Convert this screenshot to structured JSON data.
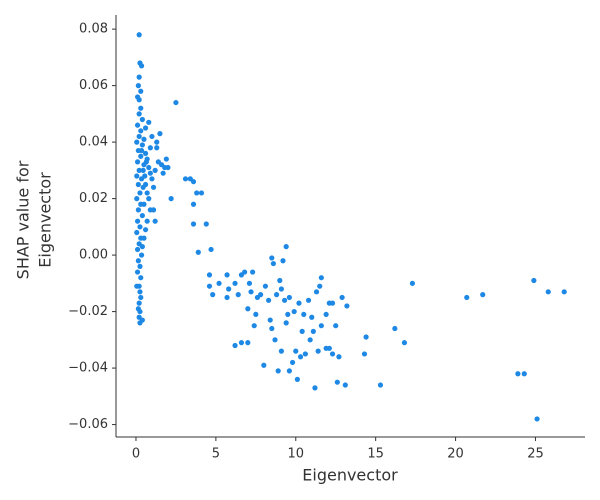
{
  "chart_data": {
    "type": "scatter",
    "x_label": "Eigenvector",
    "y_label": [
      "SHAP value for",
      "Eigenvector"
    ],
    "color": "#1e88e5",
    "x": [
      0.2,
      0.25,
      0.35,
      0.2,
      0.15,
      0.3,
      0.1,
      0.2,
      0.3,
      0.2,
      0.4,
      0.1,
      0.3,
      0.2,
      0.05,
      0.4,
      0.15,
      0.3,
      0.1,
      0.5,
      0.2,
      0.05,
      0.35,
      0.15,
      0.45,
      0.25,
      0.05,
      0.3,
      0.15,
      0.4,
      0.1,
      0.25,
      0.05,
      0.3,
      0.2,
      0.1,
      0.35,
      0.15,
      0.25,
      0.1,
      0.3,
      0.2,
      0.05,
      0.25,
      0.3,
      0.2,
      0.15,
      0.25,
      0.2,
      0.25,
      0.4,
      0.35,
      0.5,
      0.6,
      0.7,
      0.8,
      0.9,
      1.0,
      0.6,
      0.7,
      0.8,
      0.5,
      0.9,
      0.7,
      0.6,
      0.5,
      0.4,
      0.55,
      0.45,
      0.65,
      1.1,
      1.2,
      1.3,
      1.4,
      1.5,
      1.6,
      1.7,
      1.8,
      1.9,
      1.0,
      0.9,
      1.1,
      1.2,
      1.3,
      0.8,
      0.6,
      2.0,
      2.2,
      2.5,
      3.1,
      3.4,
      3.6,
      3.8,
      3.6,
      4.1,
      3.6,
      4.4,
      3.9,
      4.7,
      4.6,
      4.6,
      4.8,
      5.2,
      5.7,
      5.8,
      5.7,
      6.2,
      6.4,
      6.6,
      6.8,
      7.1,
      7.2,
      7.0,
      7.3,
      7.6,
      7.8,
      8.1,
      8.3,
      8.5,
      8.6,
      8.8,
      9.0,
      9.2,
      9.4,
      9.1,
      9.3,
      9.5,
      9.6,
      9.9,
      10.2,
      10.5,
      10.8,
      11.0,
      11.3,
      11.6,
      11.5,
      11.9,
      12.1,
      12.3,
      12.5,
      12.9,
      13.2,
      6.2,
      6.6,
      7.0,
      7.5,
      7.4,
      8.0,
      8.4,
      8.5,
      8.7,
      8.9,
      9.1,
      9.4,
      9.6,
      9.8,
      10.0,
      10.1,
      10.3,
      10.4,
      10.6,
      10.9,
      11.1,
      11.4,
      11.6,
      11.9,
      12.1,
      12.3,
      12.6,
      12.7,
      13.1,
      14.3,
      14.4,
      15.3,
      16.2,
      16.8,
      11.2,
      17.3,
      20.7,
      21.7,
      23.9,
      24.3,
      24.9,
      25.1,
      25.8,
      26.8
    ],
    "values": [
      0.078,
      0.068,
      0.067,
      0.063,
      0.06,
      0.058,
      0.056,
      0.055,
      0.052,
      0.05,
      0.048,
      0.046,
      0.044,
      0.042,
      0.04,
      0.039,
      0.037,
      0.035,
      0.033,
      0.032,
      0.03,
      0.028,
      0.027,
      0.025,
      0.024,
      0.022,
      0.02,
      0.018,
      0.016,
      0.014,
      0.012,
      0.01,
      0.008,
      0.006,
      0.004,
      0.002,
      0,
      -0.002,
      -0.004,
      -0.006,
      -0.008,
      -0.011,
      -0.011,
      -0.013,
      -0.015,
      -0.017,
      -0.019,
      -0.02,
      -0.022,
      -0.024,
      -0.023,
      0.037,
      0.041,
      0.036,
      0.034,
      0.031,
      0.029,
      0.027,
      0.025,
      0.022,
      0.02,
      0.018,
      0.016,
      0.012,
      0.009,
      0.006,
      0.003,
      0.028,
      0.03,
      0.033,
      0.024,
      0.03,
      0.038,
      0.033,
      0.043,
      0.032,
      0.029,
      0.031,
      0.034,
      0.042,
      0.038,
      0.016,
      0.012,
      0.04,
      0.047,
      0.045,
      0.031,
      0.02,
      0.054,
      0.027,
      0.027,
      0.026,
      0.022,
      0.018,
      0.022,
      0.011,
      0.011,
      0.001,
      0.002,
      -0.007,
      -0.011,
      -0.014,
      -0.01,
      -0.007,
      -0.012,
      -0.015,
      -0.01,
      -0.014,
      -0.007,
      -0.006,
      -0.01,
      -0.013,
      -0.019,
      -0.006,
      -0.015,
      -0.014,
      -0.011,
      -0.016,
      -0.001,
      -0.003,
      -0.014,
      -0.009,
      -0.002,
      0.003,
      -0.012,
      -0.016,
      -0.021,
      -0.015,
      -0.02,
      -0.017,
      -0.021,
      -0.016,
      -0.022,
      -0.013,
      -0.008,
      -0.011,
      -0.021,
      -0.017,
      -0.017,
      -0.025,
      -0.015,
      -0.018,
      -0.032,
      -0.031,
      -0.031,
      -0.021,
      -0.025,
      -0.039,
      -0.023,
      -0.026,
      -0.03,
      -0.041,
      -0.034,
      -0.024,
      -0.041,
      -0.038,
      -0.034,
      -0.044,
      -0.036,
      -0.027,
      -0.035,
      -0.03,
      -0.027,
      -0.034,
      -0.025,
      -0.033,
      -0.033,
      -0.035,
      -0.045,
      -0.036,
      -0.046,
      -0.035,
      -0.029,
      -0.046,
      -0.026,
      -0.031,
      -0.047,
      -0.01,
      -0.015,
      -0.014,
      -0.042,
      -0.042,
      -0.009,
      -0.058,
      -0.013,
      -0.013
    ],
    "xlim": [
      -1.25,
      28.1
    ],
    "ylim": [
      -0.0644,
      0.085
    ],
    "xticks": [
      0,
      5,
      10,
      15,
      20,
      25
    ],
    "yticks": [
      0.08,
      0.06,
      0.04,
      0.02,
      {
        "value": 0,
        "label": "0.00"
      },
      {
        "value": -0.02,
        "label": "−0.02"
      },
      {
        "value": -0.04,
        "label": "−0.04"
      },
      {
        "value": -0.06,
        "label": "−0.06"
      }
    ]
  }
}
